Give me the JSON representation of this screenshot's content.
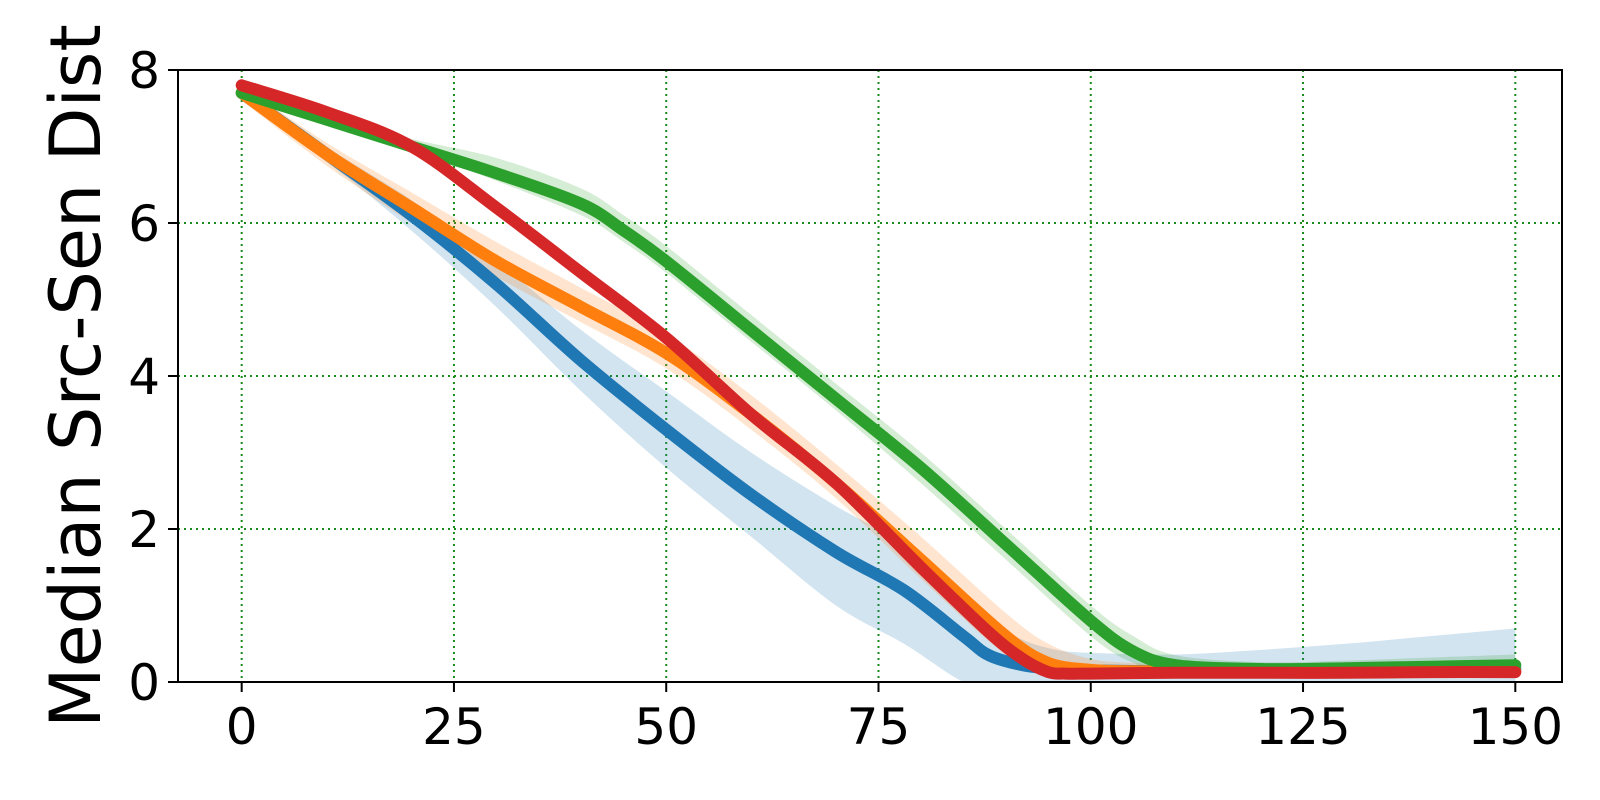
{
  "chart_data": {
    "type": "line",
    "title": "",
    "xlabel": "",
    "ylabel": "Median Src-Sen Dist",
    "xlim": [
      -7.5,
      155.5
    ],
    "ylim": [
      0,
      8
    ],
    "xticks": [
      0,
      25,
      50,
      75,
      100,
      125,
      150
    ],
    "yticks": [
      0,
      2,
      4,
      6,
      8
    ],
    "grid": true,
    "legend": "none",
    "series": [
      {
        "color": "#1f77b4",
        "x": [
          0,
          10,
          20,
          30,
          40,
          50,
          60,
          70,
          78,
          85,
          88,
          92,
          96,
          100,
          110,
          120,
          130,
          140,
          150
        ],
        "y": [
          7.7,
          6.9,
          6.1,
          5.2,
          4.2,
          3.3,
          2.45,
          1.7,
          1.2,
          0.6,
          0.35,
          0.22,
          0.17,
          0.15,
          0.14,
          0.14,
          0.15,
          0.16,
          0.17
        ],
        "lower": [
          7.6,
          6.8,
          5.9,
          4.9,
          3.8,
          2.8,
          1.9,
          1.0,
          0.5,
          0.0,
          0.0,
          0.0,
          0.0,
          0.0,
          0.0,
          0.0,
          0.0,
          0.0,
          0.0
        ],
        "upper": [
          7.8,
          7.0,
          6.3,
          5.5,
          4.6,
          3.8,
          3.0,
          2.3,
          1.8,
          1.1,
          0.8,
          0.55,
          0.42,
          0.38,
          0.36,
          0.42,
          0.5,
          0.6,
          0.7
        ]
      },
      {
        "color": "#ff7f0e",
        "x": [
          0,
          10,
          20,
          30,
          40,
          50,
          60,
          70,
          80,
          90,
          95,
          100,
          105,
          110,
          120,
          130,
          140,
          150
        ],
        "y": [
          7.7,
          6.9,
          6.2,
          5.5,
          4.9,
          4.3,
          3.5,
          2.6,
          1.6,
          0.6,
          0.25,
          0.16,
          0.14,
          0.14,
          0.14,
          0.14,
          0.14,
          0.14
        ],
        "lower": [
          7.6,
          6.75,
          6.0,
          5.3,
          4.7,
          4.1,
          3.3,
          2.4,
          1.35,
          0.35,
          0.1,
          0.05,
          0.05,
          0.05,
          0.05,
          0.05,
          0.05,
          0.05
        ],
        "upper": [
          7.8,
          7.05,
          6.4,
          5.75,
          5.15,
          4.55,
          3.75,
          2.85,
          1.9,
          0.9,
          0.5,
          0.3,
          0.25,
          0.22,
          0.22,
          0.22,
          0.22,
          0.22
        ]
      },
      {
        "color": "#2ca02c",
        "x": [
          0,
          10,
          20,
          30,
          40,
          45,
          50,
          60,
          70,
          80,
          90,
          100,
          105,
          110,
          120,
          130,
          140,
          150
        ],
        "y": [
          7.7,
          7.35,
          7.0,
          6.65,
          6.25,
          5.9,
          5.5,
          4.6,
          3.7,
          2.8,
          1.8,
          0.8,
          0.4,
          0.22,
          0.17,
          0.18,
          0.2,
          0.22
        ],
        "lower": [
          7.65,
          7.3,
          6.95,
          6.55,
          6.1,
          5.75,
          5.35,
          4.45,
          3.55,
          2.6,
          1.6,
          0.6,
          0.25,
          0.12,
          0.1,
          0.1,
          0.1,
          0.1
        ],
        "upper": [
          7.75,
          7.4,
          7.1,
          6.85,
          6.45,
          6.1,
          5.7,
          4.8,
          3.9,
          3.0,
          2.0,
          1.0,
          0.6,
          0.35,
          0.26,
          0.28,
          0.32,
          0.36
        ]
      },
      {
        "color": "#d62728",
        "x": [
          0,
          10,
          20,
          30,
          40,
          50,
          60,
          70,
          80,
          88,
          92,
          95,
          97,
          100,
          110,
          120,
          130,
          140,
          150
        ],
        "y": [
          7.8,
          7.45,
          7.0,
          6.2,
          5.35,
          4.5,
          3.5,
          2.6,
          1.5,
          0.65,
          0.3,
          0.13,
          0.11,
          0.11,
          0.12,
          0.12,
          0.12,
          0.13,
          0.13
        ],
        "lower": [
          7.75,
          7.4,
          6.95,
          6.15,
          5.3,
          4.45,
          3.45,
          2.55,
          1.45,
          0.6,
          0.25,
          0.1,
          0.08,
          0.08,
          0.09,
          0.09,
          0.09,
          0.1,
          0.1
        ],
        "upper": [
          7.85,
          7.5,
          7.05,
          6.25,
          5.4,
          4.55,
          3.55,
          2.65,
          1.55,
          0.7,
          0.35,
          0.16,
          0.14,
          0.14,
          0.15,
          0.15,
          0.15,
          0.16,
          0.16
        ]
      }
    ]
  }
}
